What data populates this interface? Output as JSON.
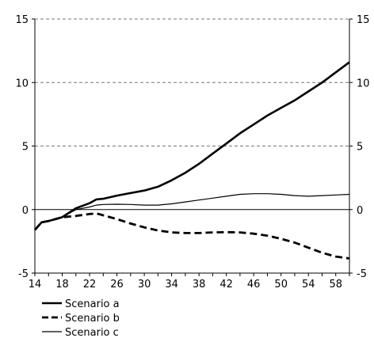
{
  "chart_data": {
    "type": "line",
    "title": "",
    "xlabel": "",
    "ylabel": "",
    "xlim": [
      14,
      60
    ],
    "ylim": [
      -5,
      15
    ],
    "x_ticks": [
      14,
      18,
      22,
      26,
      30,
      34,
      38,
      42,
      46,
      50,
      54,
      58
    ],
    "y_ticks": [
      -5,
      0,
      5,
      10,
      15
    ],
    "grid": "horizontal dashed at 5, 10, 15",
    "legend_position": "bottom-left",
    "series": [
      {
        "name": "Scenario a",
        "style": "solid-thick",
        "color": "#000000",
        "x": [
          14,
          15,
          16,
          18,
          20,
          22,
          23,
          24,
          26,
          28,
          30,
          32,
          34,
          36,
          38,
          40,
          42,
          44,
          46,
          48,
          50,
          52,
          54,
          56,
          58,
          60
        ],
        "y": [
          -1.6,
          -1.0,
          -0.9,
          -0.6,
          0.1,
          0.5,
          0.8,
          0.85,
          1.1,
          1.3,
          1.5,
          1.8,
          2.3,
          2.9,
          3.6,
          4.4,
          5.2,
          6.0,
          6.7,
          7.4,
          8.0,
          8.6,
          9.3,
          10.0,
          10.8,
          11.6
        ]
      },
      {
        "name": "Scenario b",
        "style": "dashed-thick",
        "color": "#000000",
        "x": [
          14,
          15,
          16,
          18,
          20,
          22,
          23,
          24,
          26,
          28,
          30,
          32,
          34,
          36,
          38,
          40,
          42,
          44,
          46,
          48,
          50,
          52,
          54,
          56,
          58,
          60
        ],
        "y": [
          -1.6,
          -1.0,
          -0.9,
          -0.6,
          -0.5,
          -0.35,
          -0.3,
          -0.45,
          -0.75,
          -1.1,
          -1.4,
          -1.65,
          -1.8,
          -1.85,
          -1.85,
          -1.8,
          -1.78,
          -1.8,
          -1.9,
          -2.05,
          -2.3,
          -2.6,
          -3.0,
          -3.4,
          -3.7,
          -3.85
        ]
      },
      {
        "name": "Scenario c",
        "style": "solid-thin",
        "color": "#000000",
        "x": [
          14,
          15,
          16,
          18,
          20,
          22,
          23,
          24,
          26,
          28,
          30,
          32,
          34,
          36,
          38,
          40,
          42,
          44,
          46,
          48,
          50,
          52,
          54,
          56,
          58,
          60
        ],
        "y": [
          -1.6,
          -1.0,
          -0.9,
          -0.6,
          0.0,
          0.2,
          0.35,
          0.4,
          0.42,
          0.4,
          0.35,
          0.35,
          0.45,
          0.6,
          0.75,
          0.9,
          1.05,
          1.2,
          1.25,
          1.25,
          1.2,
          1.1,
          1.05,
          1.1,
          1.15,
          1.2
        ]
      }
    ]
  }
}
